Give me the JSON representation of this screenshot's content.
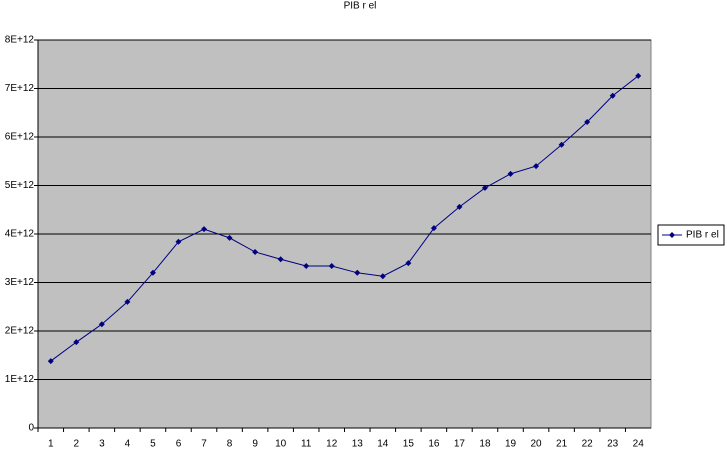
{
  "chart_data": {
    "type": "line",
    "title": "PIB r el",
    "categories": [
      "1",
      "2",
      "3",
      "4",
      "5",
      "6",
      "7",
      "8",
      "9",
      "10",
      "11",
      "12",
      "13",
      "14",
      "15",
      "16",
      "17",
      "18",
      "19",
      "20",
      "21",
      "22",
      "23",
      "24"
    ],
    "series": [
      {
        "name": "PIB r el",
        "color": "#000080",
        "values": [
          1380000000000,
          1770000000000,
          2140000000000,
          2600000000000,
          3200000000000,
          3840000000000,
          4100000000000,
          3920000000000,
          3630000000000,
          3480000000000,
          3340000000000,
          3340000000000,
          3200000000000,
          3130000000000,
          3400000000000,
          4120000000000,
          4560000000000,
          4950000000000,
          5240000000000,
          5400000000000,
          5840000000000,
          6310000000000,
          6850000000000,
          7260000000000
        ]
      }
    ],
    "ylim": [
      0,
      8000000000000
    ],
    "yticks": [
      0,
      {
        "value": 1000000000000,
        "label": "1E+12"
      },
      {
        "value": 2000000000000,
        "label": "2E+12"
      },
      {
        "value": 3000000000000,
        "label": "3E+12"
      },
      {
        "value": 4000000000000,
        "label": "4E+12"
      },
      {
        "value": 5000000000000,
        "label": "5E+12"
      },
      {
        "value": 6000000000000,
        "label": "6E+12"
      },
      {
        "value": 7000000000000,
        "label": "7E+12"
      },
      {
        "value": 8000000000000,
        "label": "8E+12"
      }
    ],
    "grid": true,
    "plot_background": "#c0c0c0",
    "legend": "right"
  }
}
